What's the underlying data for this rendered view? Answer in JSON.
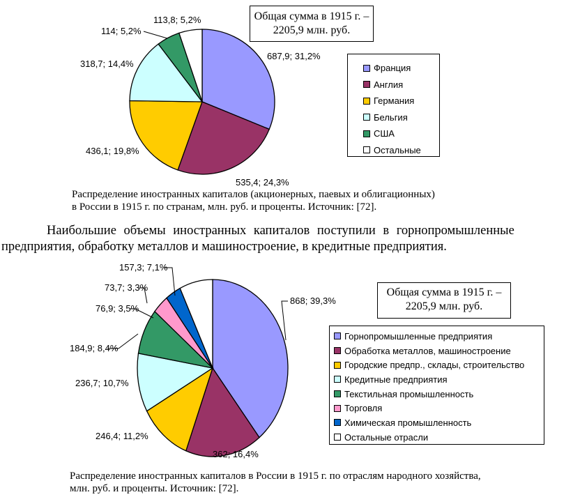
{
  "chart_data": [
    {
      "type": "pie",
      "title": "Распределение иностранных капиталов по странам",
      "total_box": [
        "Общая сумма в 1915 г. –",
        "2205,9 млн. руб."
      ],
      "categories": [
        "Франция",
        "Англия",
        "Германия",
        "Бельгия",
        "США",
        "Остальные"
      ],
      "values": [
        687.9,
        535.4,
        436.1,
        318.7,
        114,
        113.8
      ],
      "percents": [
        31.2,
        24.3,
        19.8,
        14.4,
        5.2,
        5.2
      ],
      "data_labels": [
        "687,9; 31,2%",
        "535,4; 24,3%",
        "436,1; 19,8%",
        "318,7; 14,4%",
        "114; 5,2%",
        "113,8; 5,2%"
      ],
      "colors": [
        "#9999ff",
        "#993366",
        "#ffcc00",
        "#ccffff",
        "#339966",
        "#ffffff"
      ],
      "legend_position": "right",
      "caption": [
        "Распределение иностранных капиталов (акционерных, паевых и облигационных)",
        "в России в 1915 г. по странам, млн. руб. и проценты.  Источник: [72]."
      ]
    },
    {
      "type": "pie",
      "title": "Распределение иностранных капиталов по отраслям",
      "total_box": [
        "Общая сумма в 1915 г. –",
        "2205,9 млн. руб."
      ],
      "categories": [
        "Горнопромышленные предприятия",
        "Обработка металлов, машиностроение",
        "Городские предпр., склады, строительство",
        "Кредитные предприятия",
        "Текстильная промышленность",
        "Торговля",
        "Химическая промышленность",
        "Остальные отрасли"
      ],
      "values": [
        868,
        362,
        246.4,
        236.7,
        184.9,
        76.9,
        73.7,
        157.3
      ],
      "percents": [
        39.3,
        16.4,
        11.2,
        10.7,
        8.4,
        3.5,
        3.3,
        7.1
      ],
      "data_labels": [
        "868; 39,3%",
        "362; 16,4%",
        "246,4; 11,2%",
        "236,7; 10,7%",
        "184,9; 8,4%",
        "76,9; 3,5%",
        "73,7; 3,3%",
        "157,3; 7,1%"
      ],
      "colors": [
        "#9999ff",
        "#993366",
        "#ffcc00",
        "#ccffff",
        "#339966",
        "#ff99cc",
        "#0066cc",
        "#ffffff"
      ],
      "legend_position": "right",
      "caption": [
        "Распределение иностранных капиталов в России в 1915 г. по отраслям народного хозяйства,",
        "млн. руб. и проценты.  Источник: [72]."
      ]
    }
  ],
  "paragraph": [
    "Наибольшие объемы иностранных капиталов поступили в горнопромышленные",
    "предприятия, обработку металлов и  машиностроение, в кредитные предприятия."
  ]
}
